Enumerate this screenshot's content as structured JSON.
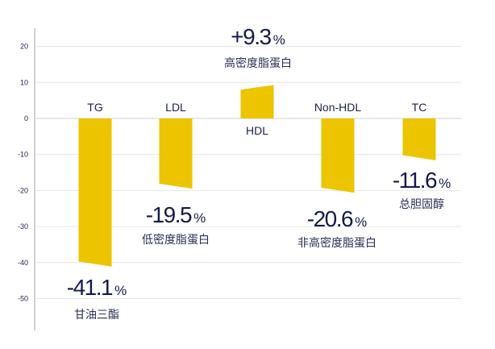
{
  "chart_data": {
    "type": "bar",
    "categories": [
      "TG",
      "LDL",
      "HDL",
      "Non-HDL",
      "TC"
    ],
    "values": [
      -41.1,
      -19.5,
      9.3,
      -20.6,
      -11.6
    ],
    "value_labels": [
      "-41.1",
      "-19.5",
      "+9.3",
      "-20.6",
      "-11.6"
    ],
    "value_unit": "%",
    "chinese_labels": [
      "甘油三酯",
      "低密度脂蛋白",
      "高密度脂蛋白",
      "非高密度脂蛋白",
      "总胆固醇"
    ],
    "yticks": [
      20,
      10,
      0,
      -10,
      -20,
      -30,
      -40,
      -50
    ],
    "ylim": [
      -59,
      25
    ],
    "grid": true,
    "title": "",
    "xlabel": "",
    "ylabel": "",
    "colors": {
      "bar": "#ecc400",
      "text": "#141a4a",
      "grid": "#e6e6ea",
      "axis": "#d0d0d4"
    }
  }
}
